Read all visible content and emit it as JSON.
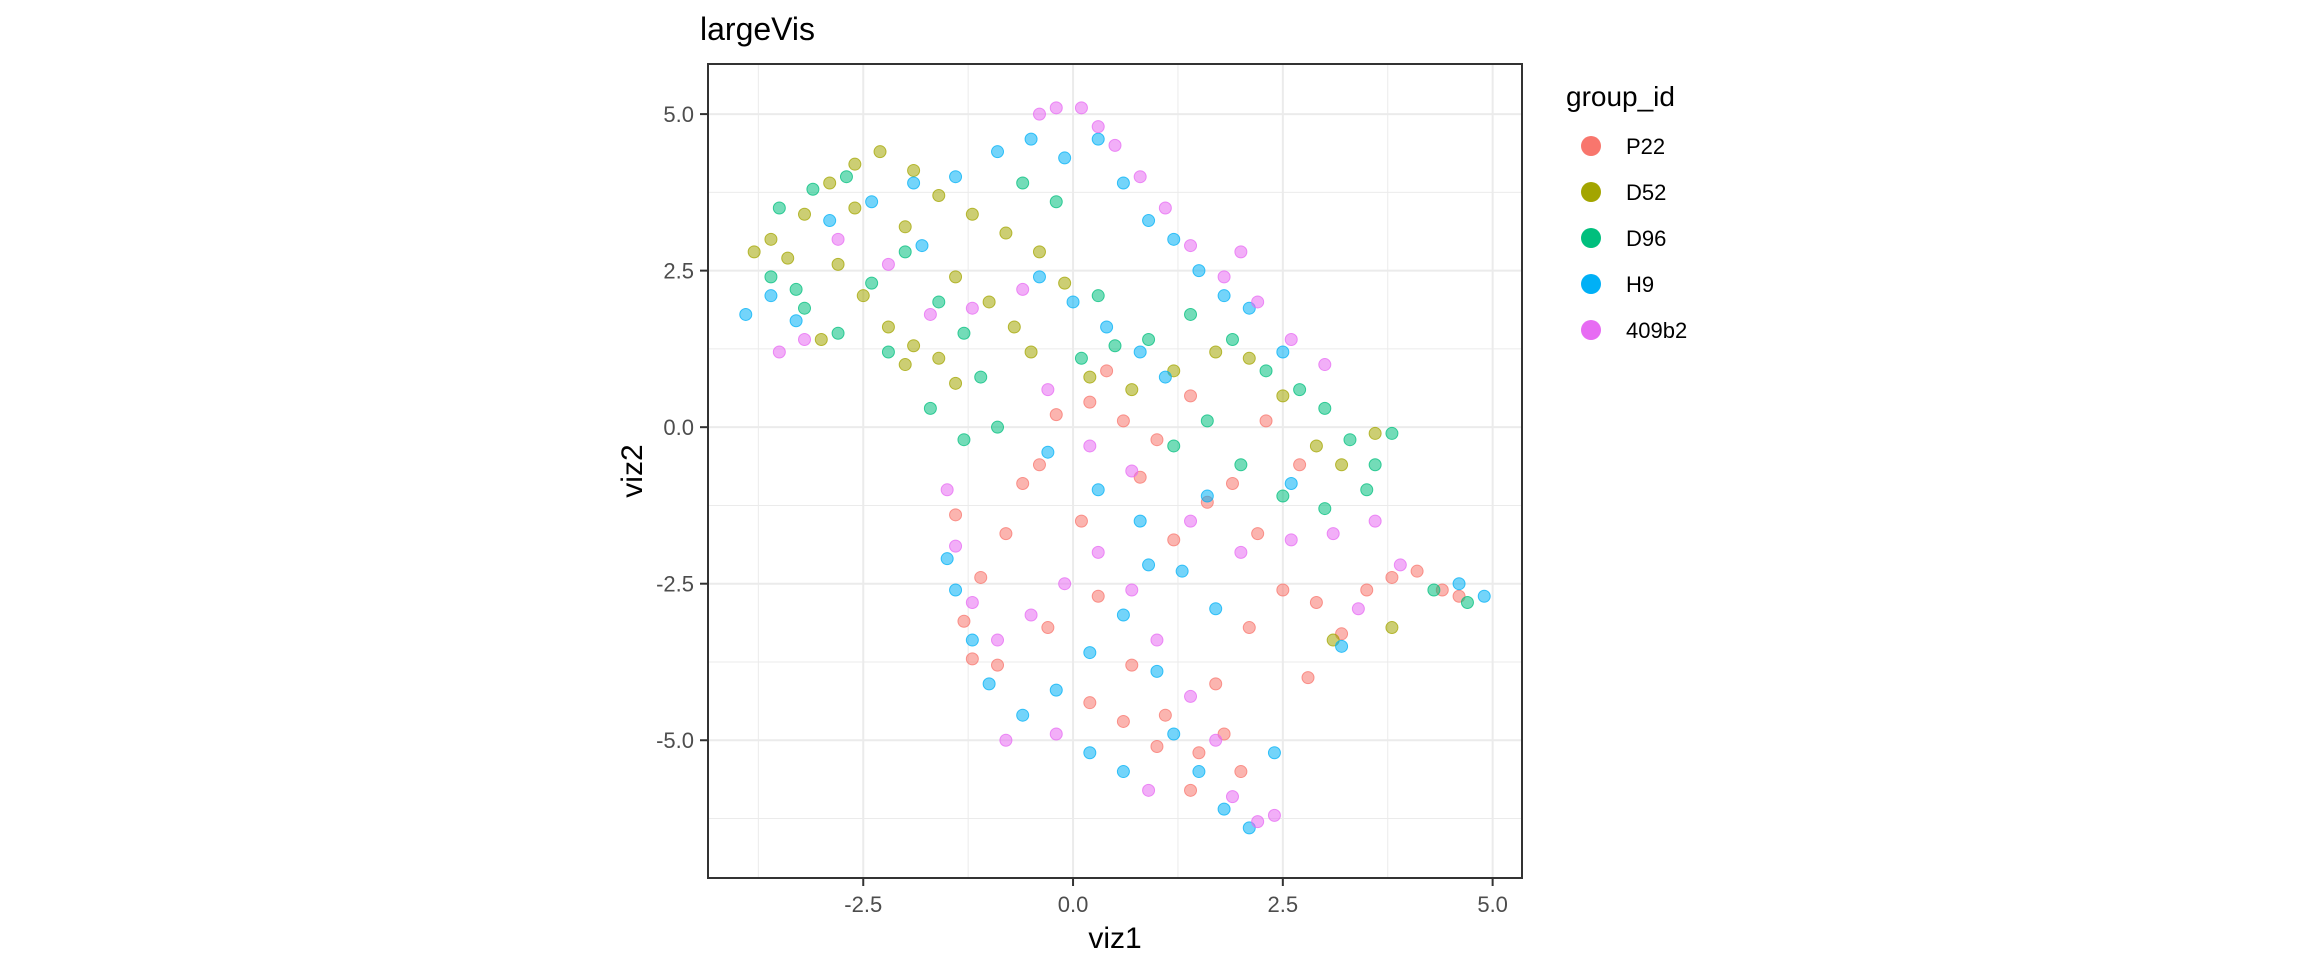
{
  "chart_data": {
    "type": "scatter",
    "title": "largeVis",
    "xlabel": "viz1",
    "ylabel": "viz2",
    "xlim": [
      -4.35,
      5.35
    ],
    "ylim": [
      -7.2,
      5.8
    ],
    "x_ticks": [
      -2.5,
      0.0,
      2.5,
      5.0
    ],
    "y_ticks": [
      5.0,
      2.5,
      0.0,
      -2.5,
      -5.0
    ],
    "x_tick_labels": [
      "-2.5",
      "0.0",
      "2.5",
      "5.0"
    ],
    "y_tick_labels": [
      "5.0",
      "2.5",
      "0.0",
      "-2.5",
      "-5.0"
    ],
    "grid": true,
    "legend_title": "group_id",
    "legend_position": "right",
    "point_alpha": 0.55,
    "series": [
      {
        "name": "P22",
        "color": "#F8766D",
        "points": [
          [
            0.2,
            0.4
          ],
          [
            0.6,
            0.1
          ],
          [
            1.0,
            -0.2
          ],
          [
            1.4,
            0.5
          ],
          [
            0.8,
            -0.8
          ],
          [
            1.6,
            -1.2
          ],
          [
            1.2,
            -1.8
          ],
          [
            0.1,
            -1.5
          ],
          [
            -0.4,
            -0.6
          ],
          [
            -0.8,
            -1.7
          ],
          [
            -1.1,
            -2.4
          ],
          [
            -1.3,
            -3.1
          ],
          [
            -0.9,
            -3.8
          ],
          [
            -0.3,
            -3.2
          ],
          [
            0.3,
            -2.7
          ],
          [
            0.7,
            -3.8
          ],
          [
            1.1,
            -4.6
          ],
          [
            1.5,
            -5.2
          ],
          [
            1.8,
            -4.9
          ],
          [
            2.0,
            -5.5
          ],
          [
            1.4,
            -5.8
          ],
          [
            1.0,
            -5.1
          ],
          [
            0.6,
            -4.7
          ],
          [
            2.1,
            -3.2
          ],
          [
            2.5,
            -2.6
          ],
          [
            2.9,
            -2.8
          ],
          [
            3.2,
            -3.3
          ],
          [
            3.5,
            -2.6
          ],
          [
            3.8,
            -2.4
          ],
          [
            4.1,
            -2.3
          ],
          [
            4.4,
            -2.6
          ],
          [
            4.6,
            -2.7
          ],
          [
            2.2,
            -1.7
          ],
          [
            1.9,
            -0.9
          ],
          [
            2.3,
            0.1
          ],
          [
            2.7,
            -0.6
          ],
          [
            0.4,
            0.9
          ],
          [
            -0.2,
            0.2
          ],
          [
            -0.6,
            -0.9
          ],
          [
            -1.4,
            -1.4
          ],
          [
            -1.2,
            -3.7
          ],
          [
            0.2,
            -4.4
          ],
          [
            1.7,
            -4.1
          ],
          [
            2.8,
            -4.0
          ]
        ]
      },
      {
        "name": "D52",
        "color": "#A3A500",
        "points": [
          [
            -3.8,
            2.8
          ],
          [
            -3.6,
            3.0
          ],
          [
            -3.2,
            3.4
          ],
          [
            -2.9,
            3.9
          ],
          [
            -2.6,
            4.2
          ],
          [
            -2.3,
            4.4
          ],
          [
            -1.9,
            4.1
          ],
          [
            -1.6,
            3.7
          ],
          [
            -1.2,
            3.4
          ],
          [
            -0.8,
            3.1
          ],
          [
            -0.4,
            2.8
          ],
          [
            -0.1,
            2.3
          ],
          [
            -2.8,
            2.6
          ],
          [
            -2.5,
            2.1
          ],
          [
            -2.2,
            1.6
          ],
          [
            -1.9,
            1.3
          ],
          [
            -1.6,
            1.1
          ],
          [
            -3.4,
            2.7
          ],
          [
            -1.4,
            2.4
          ],
          [
            -1.0,
            2.0
          ],
          [
            -0.7,
            1.6
          ],
          [
            -0.5,
            1.2
          ],
          [
            0.2,
            0.8
          ],
          [
            0.7,
            0.6
          ],
          [
            1.2,
            0.9
          ],
          [
            1.7,
            1.2
          ],
          [
            2.1,
            1.1
          ],
          [
            2.5,
            0.5
          ],
          [
            2.9,
            -0.3
          ],
          [
            3.2,
            -0.6
          ],
          [
            3.6,
            -0.1
          ],
          [
            3.1,
            -3.4
          ],
          [
            3.8,
            -3.2
          ],
          [
            -3.0,
            1.4
          ],
          [
            -2.0,
            1.0
          ],
          [
            -1.4,
            0.7
          ],
          [
            -2.0,
            3.2
          ],
          [
            -2.6,
            3.5
          ]
        ]
      },
      {
        "name": "D96",
        "color": "#00BF7D",
        "points": [
          [
            -3.6,
            2.4
          ],
          [
            -3.2,
            1.9
          ],
          [
            -2.8,
            1.5
          ],
          [
            -2.4,
            2.3
          ],
          [
            -2.0,
            2.8
          ],
          [
            -1.6,
            2.0
          ],
          [
            -1.3,
            1.5
          ],
          [
            -1.1,
            0.8
          ],
          [
            -1.7,
            0.3
          ],
          [
            -1.3,
            -0.2
          ],
          [
            -0.9,
            0.0
          ],
          [
            0.1,
            1.1
          ],
          [
            0.5,
            1.3
          ],
          [
            0.9,
            1.4
          ],
          [
            1.4,
            1.8
          ],
          [
            1.9,
            1.4
          ],
          [
            2.3,
            0.9
          ],
          [
            2.7,
            0.6
          ],
          [
            3.0,
            0.3
          ],
          [
            3.3,
            -0.2
          ],
          [
            3.6,
            -0.6
          ],
          [
            3.8,
            -0.1
          ],
          [
            3.5,
            -1.0
          ],
          [
            3.0,
            -1.3
          ],
          [
            2.5,
            -1.1
          ],
          [
            2.0,
            -0.6
          ],
          [
            1.6,
            0.1
          ],
          [
            1.2,
            -0.3
          ],
          [
            4.3,
            -2.6
          ],
          [
            4.7,
            -2.8
          ],
          [
            -3.5,
            3.5
          ],
          [
            -3.1,
            3.8
          ],
          [
            -2.7,
            4.0
          ],
          [
            -0.6,
            3.9
          ],
          [
            -0.2,
            3.6
          ],
          [
            -3.3,
            2.2
          ],
          [
            -2.2,
            1.2
          ],
          [
            0.3,
            2.1
          ]
        ]
      },
      {
        "name": "H9",
        "color": "#00B0F6",
        "points": [
          [
            -3.9,
            1.8
          ],
          [
            -3.6,
            2.1
          ],
          [
            -3.3,
            1.7
          ],
          [
            -2.9,
            3.3
          ],
          [
            -2.4,
            3.6
          ],
          [
            -1.9,
            3.9
          ],
          [
            -1.4,
            4.0
          ],
          [
            -0.9,
            4.4
          ],
          [
            -0.5,
            4.6
          ],
          [
            -0.1,
            4.3
          ],
          [
            0.3,
            4.6
          ],
          [
            0.6,
            3.9
          ],
          [
            0.9,
            3.3
          ],
          [
            1.2,
            3.0
          ],
          [
            1.5,
            2.5
          ],
          [
            1.8,
            2.1
          ],
          [
            2.1,
            1.9
          ],
          [
            2.5,
            1.2
          ],
          [
            -0.4,
            2.4
          ],
          [
            0.0,
            2.0
          ],
          [
            0.4,
            1.6
          ],
          [
            0.8,
            1.2
          ],
          [
            1.1,
            0.8
          ],
          [
            -0.3,
            -0.4
          ],
          [
            0.3,
            -1.0
          ],
          [
            0.8,
            -1.5
          ],
          [
            1.3,
            -2.3
          ],
          [
            1.7,
            -2.9
          ],
          [
            -1.4,
            -2.6
          ],
          [
            -1.2,
            -3.4
          ],
          [
            -1.0,
            -4.1
          ],
          [
            -0.6,
            -4.6
          ],
          [
            -0.2,
            -4.2
          ],
          [
            0.2,
            -3.6
          ],
          [
            0.6,
            -3.0
          ],
          [
            1.0,
            -3.9
          ],
          [
            1.2,
            -4.9
          ],
          [
            1.5,
            -5.5
          ],
          [
            1.8,
            -6.1
          ],
          [
            2.1,
            -6.4
          ],
          [
            2.4,
            -5.2
          ],
          [
            0.6,
            -5.5
          ],
          [
            0.2,
            -5.2
          ],
          [
            4.6,
            -2.5
          ],
          [
            4.9,
            -2.7
          ],
          [
            3.2,
            -3.5
          ],
          [
            -1.5,
            -2.1
          ],
          [
            0.9,
            -2.2
          ],
          [
            1.6,
            -1.1
          ],
          [
            2.6,
            -0.9
          ],
          [
            -1.8,
            2.9
          ]
        ]
      },
      {
        "name": "409b2",
        "color": "#E76BF3",
        "points": [
          [
            -3.5,
            1.2
          ],
          [
            -3.2,
            1.4
          ],
          [
            -2.8,
            3.0
          ],
          [
            -2.2,
            2.6
          ],
          [
            -1.7,
            1.8
          ],
          [
            -1.2,
            1.9
          ],
          [
            -0.6,
            2.2
          ],
          [
            -0.4,
            5.0
          ],
          [
            -0.2,
            5.1
          ],
          [
            0.1,
            5.1
          ],
          [
            0.3,
            4.8
          ],
          [
            0.5,
            4.5
          ],
          [
            0.8,
            4.0
          ],
          [
            1.1,
            3.5
          ],
          [
            1.4,
            2.9
          ],
          [
            1.8,
            2.4
          ],
          [
            2.2,
            2.0
          ],
          [
            2.6,
            1.4
          ],
          [
            3.0,
            1.0
          ],
          [
            -0.3,
            0.6
          ],
          [
            0.2,
            -0.3
          ],
          [
            0.7,
            -0.7
          ],
          [
            1.4,
            -1.5
          ],
          [
            2.0,
            -2.0
          ],
          [
            2.6,
            -1.8
          ],
          [
            3.1,
            -1.7
          ],
          [
            3.6,
            -1.5
          ],
          [
            3.9,
            -2.2
          ],
          [
            -1.5,
            -1.0
          ],
          [
            -1.4,
            -1.9
          ],
          [
            -1.2,
            -2.8
          ],
          [
            -0.9,
            -3.4
          ],
          [
            -0.5,
            -3.0
          ],
          [
            -0.1,
            -2.5
          ],
          [
            0.3,
            -2.0
          ],
          [
            0.7,
            -2.6
          ],
          [
            1.0,
            -3.4
          ],
          [
            1.4,
            -4.3
          ],
          [
            1.7,
            -5.0
          ],
          [
            1.9,
            -5.9
          ],
          [
            2.2,
            -6.3
          ],
          [
            2.4,
            -6.2
          ],
          [
            0.9,
            -5.8
          ],
          [
            -0.8,
            -5.0
          ],
          [
            -0.2,
            -4.9
          ],
          [
            3.4,
            -2.9
          ],
          [
            2.0,
            2.8
          ]
        ]
      }
    ]
  }
}
